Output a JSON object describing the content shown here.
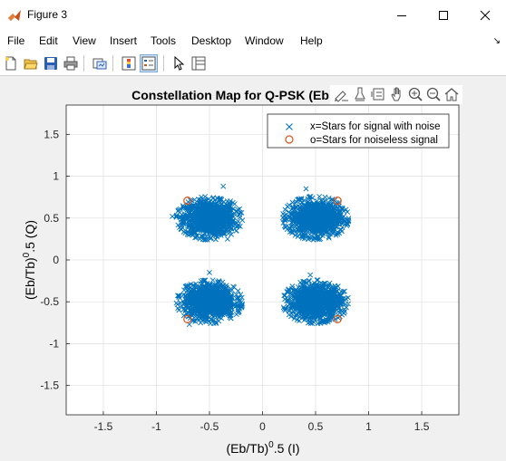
{
  "window": {
    "title": "Figure 3"
  },
  "menu": {
    "items": [
      "File",
      "Edit",
      "View",
      "Insert",
      "Tools",
      "Desktop",
      "Window",
      "Help"
    ]
  },
  "toolbar": {
    "icons": [
      "new-figure-icon",
      "open-file-icon",
      "save-icon",
      "print-icon",
      "link-plot-icon",
      "insert-colorbar-icon",
      "insert-legend-icon",
      "pointer-icon",
      "property-inspector-icon"
    ]
  },
  "axes_toolbar": {
    "icons": [
      "brush-icon",
      "data-tips-icon",
      "rotate-icon",
      "pan-icon",
      "zoom-in-icon",
      "zoom-out-icon",
      "home-icon"
    ]
  },
  "colors": {
    "noise": "#0072BD",
    "noiseless": "#D95319"
  },
  "chart_data": {
    "type": "scatter",
    "title": "Constellation Map for Q-PSK (Eb",
    "xlabel_base": "(Eb/Tb)",
    "xlabel_sup": "0",
    "xlabel_rest": ".5 (I)",
    "ylabel_base": "(Eb/Tb)",
    "ylabel_sup": "0",
    "ylabel_rest": ".5 (Q)",
    "xlim": [
      -1.85,
      1.85
    ],
    "ylim": [
      -1.85,
      1.85
    ],
    "xticks": [
      -1.5,
      -1,
      -0.5,
      0,
      0.5,
      1,
      1.5
    ],
    "xtick_labels": [
      "-1.5",
      "-1",
      "-0.5",
      "0",
      "0.5",
      "1",
      "1.5"
    ],
    "yticks": [
      -1.5,
      -1,
      -0.5,
      0,
      0.5,
      1,
      1.5
    ],
    "ytick_labels": [
      "-1.5",
      "-1",
      "-0.5",
      "0",
      "0.5",
      "1",
      "1.5"
    ],
    "grid": true,
    "legend_position": "top-right",
    "series": [
      {
        "name": "x=Stars for signal with noise",
        "marker": "x",
        "clusters": [
          {
            "center": [
              -0.5,
              0.5
            ],
            "spread": [
              0.12,
              0.1
            ]
          },
          {
            "center": [
              0.5,
              0.5
            ],
            "spread": [
              0.12,
              0.1
            ]
          },
          {
            "center": [
              -0.5,
              -0.5
            ],
            "spread": [
              0.12,
              0.1
            ]
          },
          {
            "center": [
              0.5,
              -0.5
            ],
            "spread": [
              0.12,
              0.1
            ]
          }
        ],
        "outliers": [
          [
            -0.37,
            0.88
          ],
          [
            0.41,
            0.85
          ],
          [
            -0.5,
            -0.15
          ],
          [
            0.45,
            -0.18
          ],
          [
            -0.33,
            0.25
          ],
          [
            -0.69,
            -0.77
          ],
          [
            0.25,
            -0.53
          ],
          [
            -0.85,
            0.52
          ]
        ]
      },
      {
        "name": "o=Stars for noiseless signal",
        "marker": "o",
        "points": [
          [
            -0.707,
            0.707
          ],
          [
            0.707,
            0.707
          ],
          [
            -0.707,
            -0.707
          ],
          [
            0.707,
            -0.707
          ]
        ]
      }
    ]
  }
}
